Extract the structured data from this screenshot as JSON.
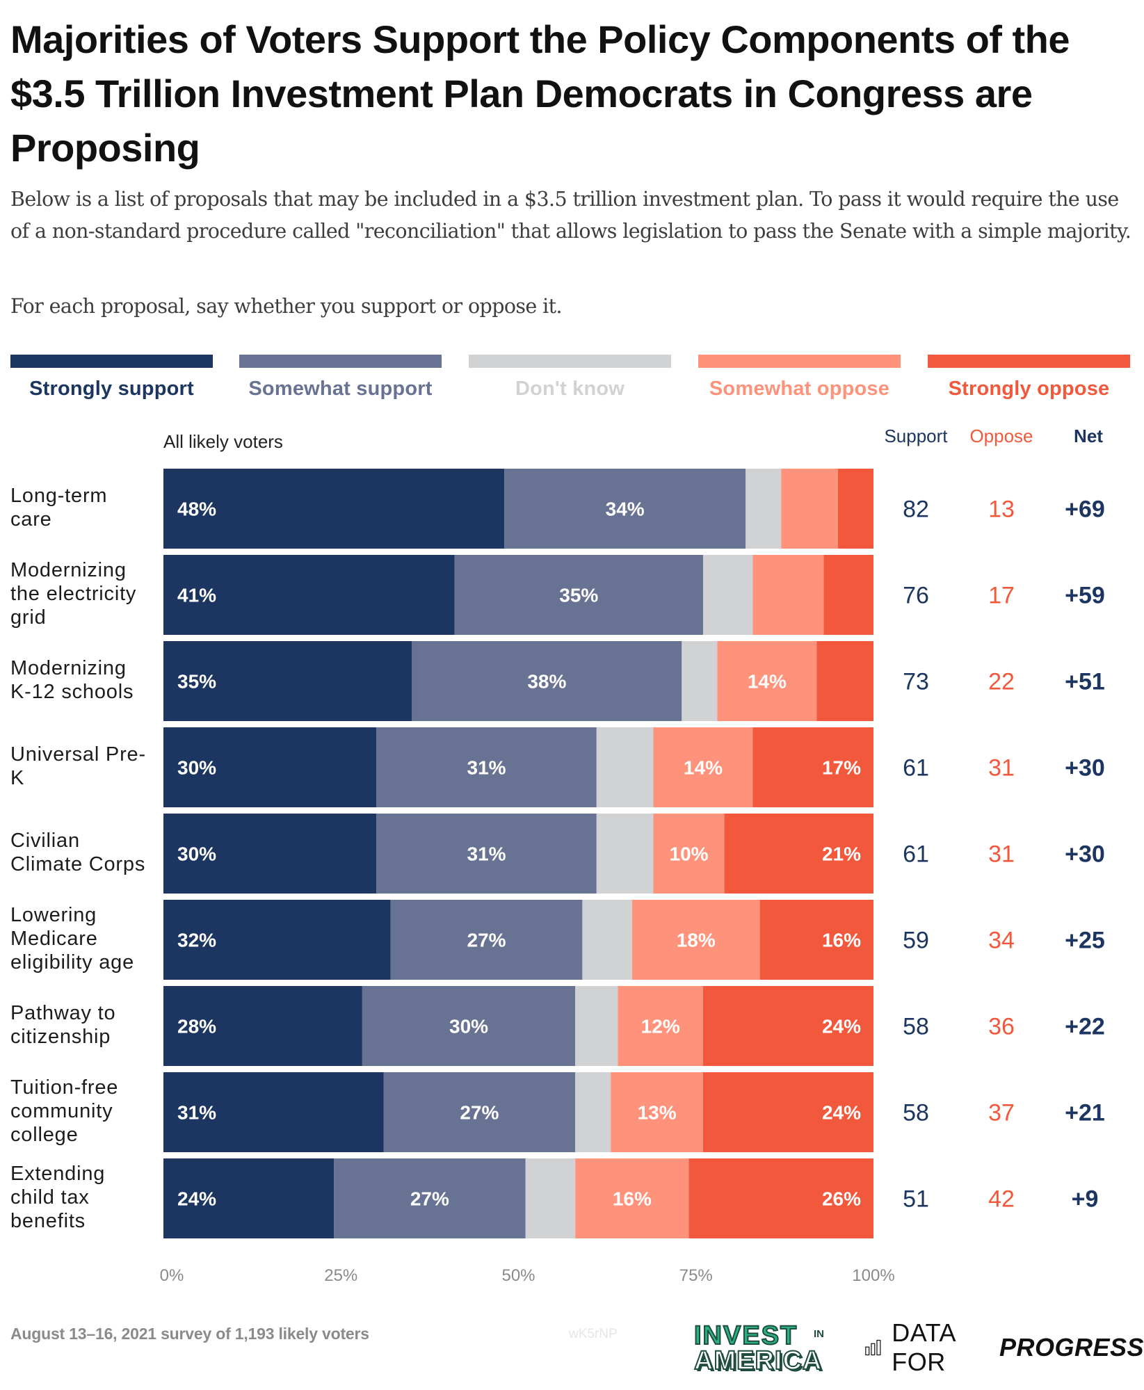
{
  "title": "Majorities of Voters Support the Policy Components of the $3.5 Trillion Investment Plan Democrats in Congress are Proposing",
  "subtitle": "Below is a list of proposals that may be included in a $3.5 trillion investment plan. To pass it would require the use of a non-standard procedure called \"reconciliation\" that allows legislation to pass the Senate with a simple majority.",
  "question": "For each proposal, say whether you support or oppose it.",
  "colors": {
    "strongly_support": "#1c3661",
    "somewhat_support": "#687293",
    "dont_know": "#d1d2d4",
    "somewhat_oppose": "#ff927a",
    "strongly_oppose": "#f1583c",
    "support_text": "#1c3661",
    "oppose_text": "#f1583c"
  },
  "columns": {
    "support": "Support",
    "oppose": "Oppose",
    "net": "Net"
  },
  "footer": {
    "note": "August 13–16, 2021 survey of 1,193 likely voters",
    "watermark": "wK5rNP",
    "logo_invest_line1": "INVEST",
    "logo_invest_in": "IN",
    "logo_invest_line2": "AMERICA",
    "logo_dfp_light": "DATA FOR",
    "logo_dfp_bold": "PROGRESS",
    "logo_dfp_icon": "bar-chart-icon"
  },
  "chart_data": {
    "type": "bar",
    "orientation": "horizontal-stacked-100",
    "title": "Majorities of Voters Support the Policy Components of the $3.5 Trillion Investment Plan Democrats in Congress are Proposing",
    "group_label": "All likely voters",
    "xlabel": "",
    "ylabel": "",
    "xlim": [
      0,
      100
    ],
    "x_ticks": [
      "0%",
      "25%",
      "50%",
      "75%",
      "100%"
    ],
    "legend_position": "top",
    "grid": false,
    "series_names": [
      "Strongly support",
      "Somewhat support",
      "Don't know",
      "Somewhat oppose",
      "Strongly oppose"
    ],
    "categories": [
      "Long-term care",
      "Modernizing the electricity grid",
      "Modernizing K-12 schools",
      "Universal Pre-K",
      "Civilian Climate Corps",
      "Lowering Medicare eligibility age",
      "Pathway to citizenship",
      "Tuition-free community college",
      "Extending child tax benefits"
    ],
    "category_lines": [
      [
        "Long-term",
        "care"
      ],
      [
        "Modernizing",
        "the electricity",
        "grid"
      ],
      [
        "Modernizing",
        "K-12 schools"
      ],
      [
        "Universal Pre-",
        "K"
      ],
      [
        "Civilian",
        "Climate Corps"
      ],
      [
        "Lowering",
        "Medicare",
        "eligibility age"
      ],
      [
        "Pathway to",
        "citizenship"
      ],
      [
        "Tuition-free",
        "community",
        "college"
      ],
      [
        "Extending",
        "child tax",
        "benefits"
      ]
    ],
    "series": [
      {
        "name": "Strongly support",
        "values": [
          48,
          41,
          35,
          30,
          30,
          32,
          28,
          31,
          24
        ],
        "labels_shown": [
          true,
          true,
          true,
          true,
          true,
          true,
          true,
          true,
          true
        ]
      },
      {
        "name": "Somewhat support",
        "values": [
          34,
          35,
          38,
          31,
          31,
          27,
          30,
          27,
          27
        ],
        "labels_shown": [
          true,
          true,
          true,
          true,
          true,
          true,
          true,
          true,
          true
        ]
      },
      {
        "name": "Don't know",
        "values": [
          5,
          7,
          5,
          8,
          8,
          7,
          6,
          5,
          7
        ],
        "labels_shown": [
          false,
          false,
          false,
          false,
          false,
          false,
          false,
          false,
          false
        ]
      },
      {
        "name": "Somewhat oppose",
        "values": [
          8,
          10,
          14,
          14,
          10,
          18,
          12,
          13,
          16
        ],
        "labels_shown": [
          false,
          false,
          true,
          true,
          true,
          true,
          true,
          true,
          true
        ]
      },
      {
        "name": "Strongly oppose",
        "values": [
          5,
          7,
          8,
          17,
          21,
          16,
          24,
          24,
          26
        ],
        "labels_shown": [
          false,
          false,
          false,
          true,
          true,
          true,
          true,
          true,
          true
        ]
      }
    ],
    "support": [
      82,
      76,
      73,
      61,
      61,
      59,
      58,
      58,
      51
    ],
    "oppose": [
      13,
      17,
      22,
      31,
      31,
      34,
      36,
      37,
      42
    ],
    "net": [
      "+69",
      "+59",
      "+51",
      "+30",
      "+30",
      "+25",
      "+22",
      "+21",
      "+9"
    ]
  }
}
